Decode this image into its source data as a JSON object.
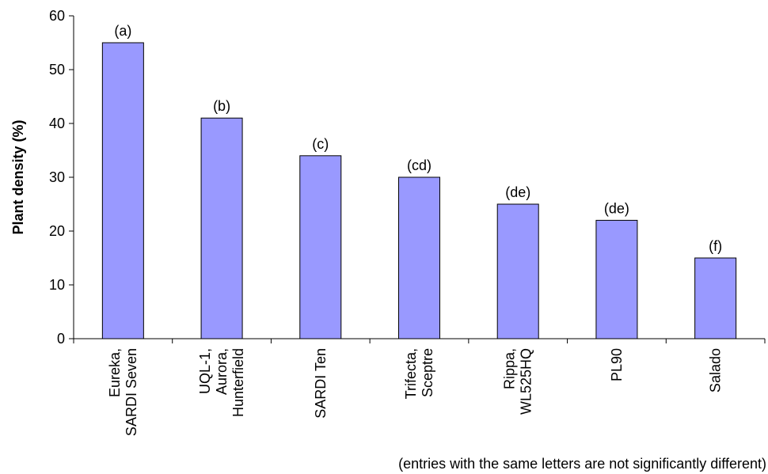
{
  "chart_data": {
    "type": "bar",
    "title": "",
    "xlabel": "",
    "ylabel": "Plant density (%)",
    "ylim": [
      0,
      60
    ],
    "yticks": [
      0,
      10,
      20,
      30,
      40,
      50,
      60
    ],
    "grid": false,
    "legend": "none",
    "bar_color": "#9999ff",
    "categories": [
      [
        "Eureka,",
        "SARDI Seven"
      ],
      [
        "UQL-1,",
        "Aurora,",
        "Hunterfield"
      ],
      [
        "SARDI Ten"
      ],
      [
        "Trifecta,",
        "Sceptre"
      ],
      [
        "Rippa,",
        "WL525HQ"
      ],
      [
        "PL90"
      ],
      [
        "Salado"
      ]
    ],
    "values": [
      55,
      41,
      34,
      30,
      25,
      22,
      15
    ],
    "significance_labels": [
      "(a)",
      "(b)",
      "(c)",
      "(cd)",
      "(de)",
      "(de)",
      "(f)"
    ],
    "note": "(entries with the same letters are not significantly different)"
  }
}
